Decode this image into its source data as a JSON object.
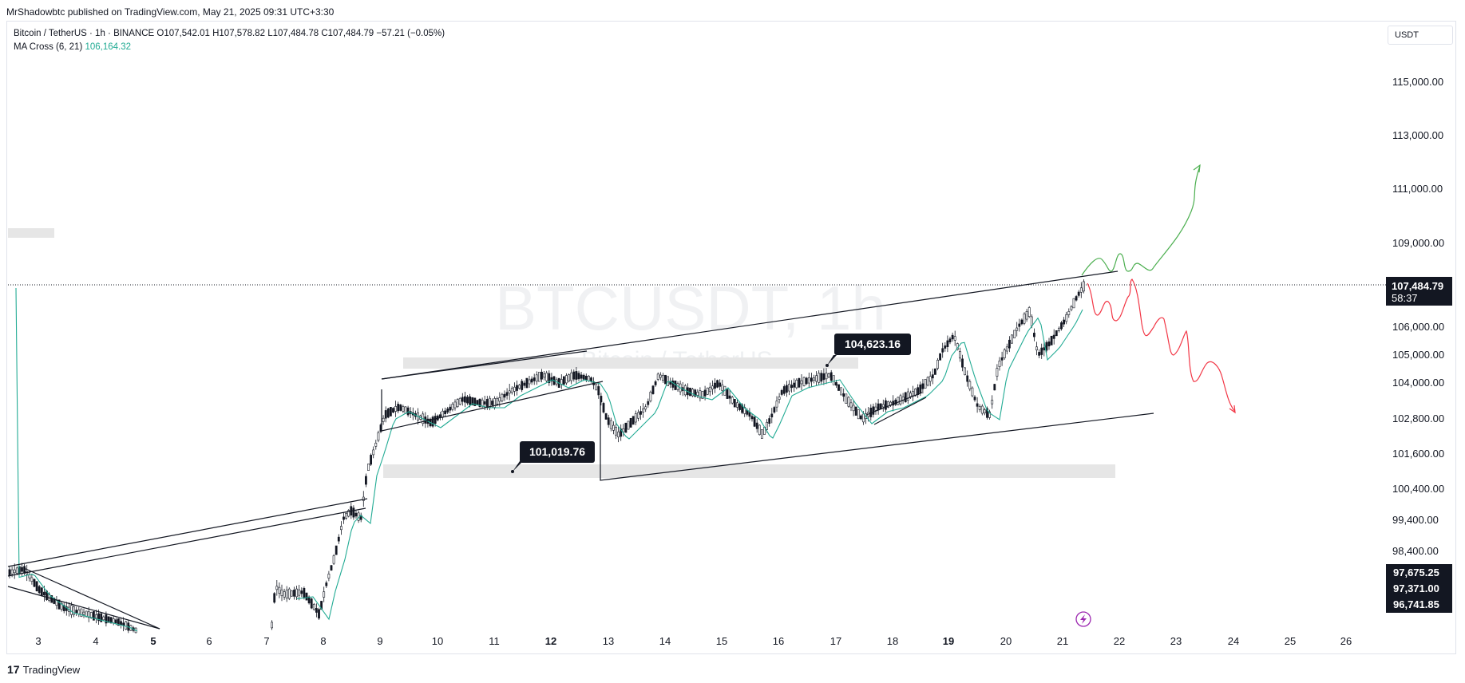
{
  "publisher": "MrShadowbtc published on TradingView.com, May 21, 2025 09:31 UTC+3:30",
  "legend": {
    "symbol": "Bitcoin / TetherUS · 1h · BINANCE",
    "open": "O107,542.01",
    "high": "H107,578.82",
    "low": "L107,484.78",
    "close": "C107,484.79",
    "change": "−57.21 (−0.05%)",
    "ma_name": "MA Cross (6, 21)",
    "ma_value": "106,164.32"
  },
  "currency_button": "USDT",
  "watermark": {
    "ticker": "BTCUSDT, 1h",
    "name": "Bitcoin / TetherUS"
  },
  "price_axis": [
    {
      "label": "115,000.00",
      "price": 115000
    },
    {
      "label": "113,000.00",
      "price": 113000
    },
    {
      "label": "111,000.00",
      "price": 111000
    },
    {
      "label": "109,000.00",
      "price": 109000
    },
    {
      "label": "106,000.00",
      "price": 106000
    },
    {
      "label": "105,000.00",
      "price": 105000
    },
    {
      "label": "104,000.00",
      "price": 104000
    },
    {
      "label": "102,800.00",
      "price": 102800
    },
    {
      "label": "101,600.00",
      "price": 101600
    },
    {
      "label": "100,400.00",
      "price": 100400
    },
    {
      "label": "99,400.00",
      "price": 99400
    },
    {
      "label": "98,400.00",
      "price": 98400
    }
  ],
  "current_price": {
    "label": "107,484.79",
    "countdown": "58:37",
    "price": 107484.79
  },
  "price_tags": [
    {
      "label": "97,675.25"
    },
    {
      "label": "97,371.00"
    },
    {
      "label": "96,741.85"
    }
  ],
  "date_axis": [
    {
      "label": "3",
      "bold": false
    },
    {
      "label": "4",
      "bold": false
    },
    {
      "label": "5",
      "bold": true
    },
    {
      "label": "6",
      "bold": false
    },
    {
      "label": "7",
      "bold": false
    },
    {
      "label": "8",
      "bold": false
    },
    {
      "label": "9",
      "bold": false
    },
    {
      "label": "10",
      "bold": false
    },
    {
      "label": "11",
      "bold": false
    },
    {
      "label": "12",
      "bold": true
    },
    {
      "label": "13",
      "bold": false
    },
    {
      "label": "14",
      "bold": false
    },
    {
      "label": "15",
      "bold": false
    },
    {
      "label": "16",
      "bold": false
    },
    {
      "label": "17",
      "bold": false
    },
    {
      "label": "18",
      "bold": false
    },
    {
      "label": "19",
      "bold": true
    },
    {
      "label": "20",
      "bold": false
    },
    {
      "label": "21",
      "bold": false
    },
    {
      "label": "22",
      "bold": false
    },
    {
      "label": "23",
      "bold": false
    },
    {
      "label": "24",
      "bold": false
    },
    {
      "label": "25",
      "bold": false
    },
    {
      "label": "26",
      "bold": false
    }
  ],
  "callouts": [
    {
      "label": "101,019.76",
      "price": 101019.76
    },
    {
      "label": "104,623.16",
      "price": 104623.16
    }
  ],
  "footer_brand": "TradingView",
  "colors": {
    "bullish_projection": "#4caf50",
    "bearish_projection": "#f23645",
    "ma_line": "#22ab94",
    "candle": "#131722",
    "zone": "#e6e6e6"
  }
}
